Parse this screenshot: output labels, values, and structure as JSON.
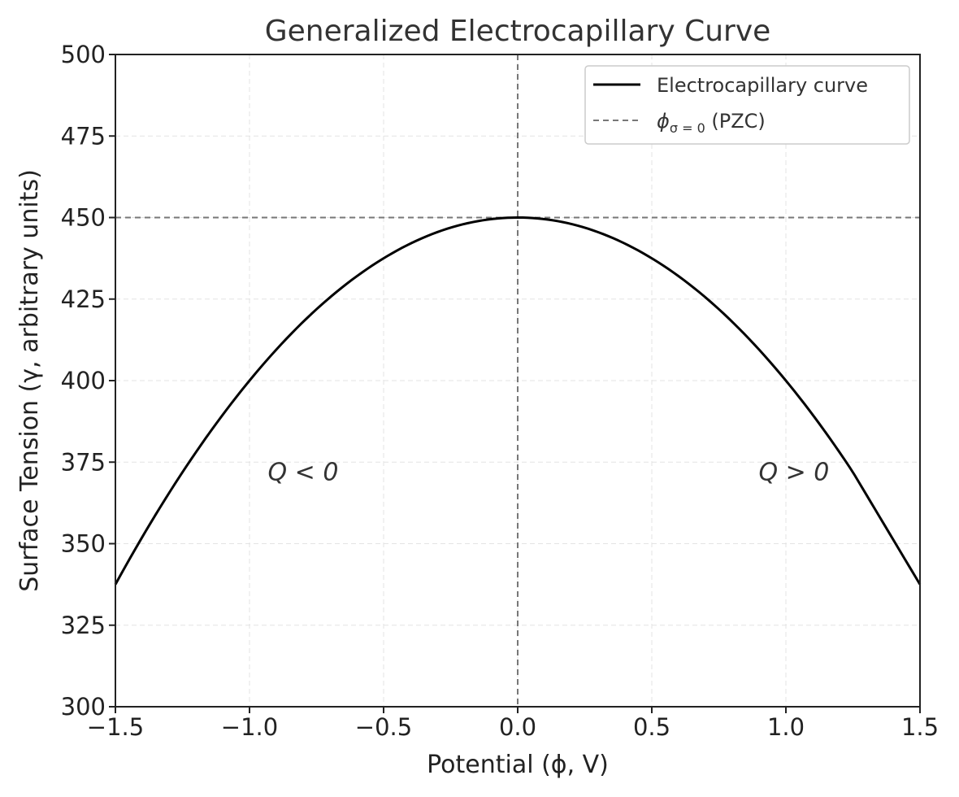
{
  "chart_data": {
    "type": "line",
    "title": "Generalized Electrocapillary Curve",
    "xlabel": "Potential (ϕ, V)",
    "ylabel": "Surface Tension (γ, arbitrary units)",
    "xlim": [
      -1.5,
      1.5
    ],
    "ylim": [
      300,
      500
    ],
    "xticks": [
      -1.5,
      -1.0,
      -0.5,
      0.0,
      0.5,
      1.0,
      1.5
    ],
    "xtick_labels": [
      "−1.5",
      "−1.0",
      "−0.5",
      "0.0",
      "0.5",
      "1.0",
      "1.5"
    ],
    "yticks": [
      300,
      325,
      350,
      375,
      400,
      425,
      450,
      475,
      500
    ],
    "ytick_labels": [
      "300",
      "325",
      "350",
      "375",
      "400",
      "425",
      "450",
      "475",
      "500"
    ],
    "grid": true,
    "series": [
      {
        "name": "Electrocapillary curve",
        "style": "solid",
        "color": "#000000",
        "x": [
          -1.5,
          -1.25,
          -1.0,
          -0.75,
          -0.5,
          -0.25,
          0.0,
          0.25,
          0.5,
          0.75,
          1.0,
          1.25,
          1.5
        ],
        "y": [
          337.5,
          371.9,
          400.0,
          421.9,
          437.5,
          446.9,
          450.0,
          446.9,
          437.5,
          421.9,
          400.0,
          371.9,
          337.5
        ]
      }
    ],
    "reference_lines": [
      {
        "orientation": "vertical",
        "value": 0.0,
        "style": "dashed",
        "color": "#777777",
        "legend": "ϕσ = 0 (PZC)"
      },
      {
        "orientation": "horizontal",
        "value": 450,
        "style": "dashed",
        "color": "#777777"
      }
    ],
    "legend": {
      "placement": "top-right",
      "entries": [
        {
          "label": "Electrocapillary curve",
          "style": "solid",
          "color": "#000000"
        },
        {
          "label_main": "ϕ",
          "label_sub": "σ = 0",
          "label_tail": " (PZC)",
          "style": "dashed",
          "color": "#777777"
        }
      ]
    },
    "annotations": [
      {
        "text": "Q < 0",
        "x": -0.8,
        "y": 372
      },
      {
        "text": "Q > 0",
        "x": 1.03,
        "y": 372
      }
    ]
  }
}
